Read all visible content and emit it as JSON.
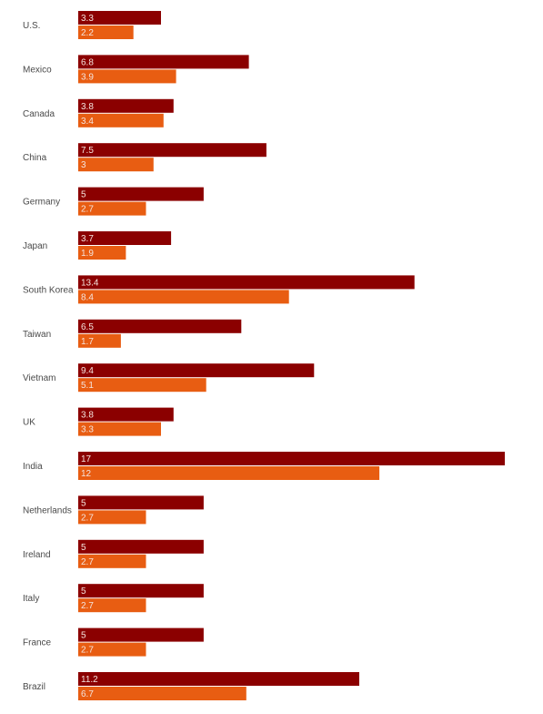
{
  "chart_data": {
    "type": "bar",
    "orientation": "horizontal",
    "categories": [
      "U.S.",
      "Mexico",
      "Canada",
      "China",
      "Germany",
      "Japan",
      "South Korea",
      "Taiwan",
      "Vietnam",
      "UK",
      "India",
      "Netherlands",
      "Ireland",
      "Italy",
      "France",
      "Brazil"
    ],
    "series": [
      {
        "color": "#8b0000",
        "values": [
          3.3,
          6.8,
          3.8,
          7.5,
          5,
          3.7,
          13.4,
          6.5,
          9.4,
          3.8,
          17,
          5,
          5,
          5,
          5,
          11.2
        ],
        "labels": [
          "3.3",
          "6.8",
          "3.8",
          "7.5",
          "5",
          "3.7",
          "13.4",
          "6.5",
          "9.4",
          "3.8",
          "17",
          "5",
          "5",
          "5",
          "5",
          "11.2"
        ]
      },
      {
        "color": "#e85d12",
        "values": [
          2.2,
          3.9,
          3.4,
          3,
          2.7,
          1.9,
          8.4,
          1.7,
          5.1,
          3.3,
          12,
          2.7,
          2.7,
          2.7,
          2.7,
          6.7
        ],
        "labels": [
          "2.2",
          "3.9",
          "3.4",
          "3",
          "2.7",
          "1.9",
          "8.4",
          "1.7",
          "5.1",
          "3.3",
          "12",
          "2.7",
          "2.7",
          "2.7",
          "2.7",
          "6.7"
        ]
      }
    ],
    "xlim": [
      0,
      17
    ],
    "grid": false,
    "legend": "none",
    "data_labels": "inside-bar-start"
  }
}
